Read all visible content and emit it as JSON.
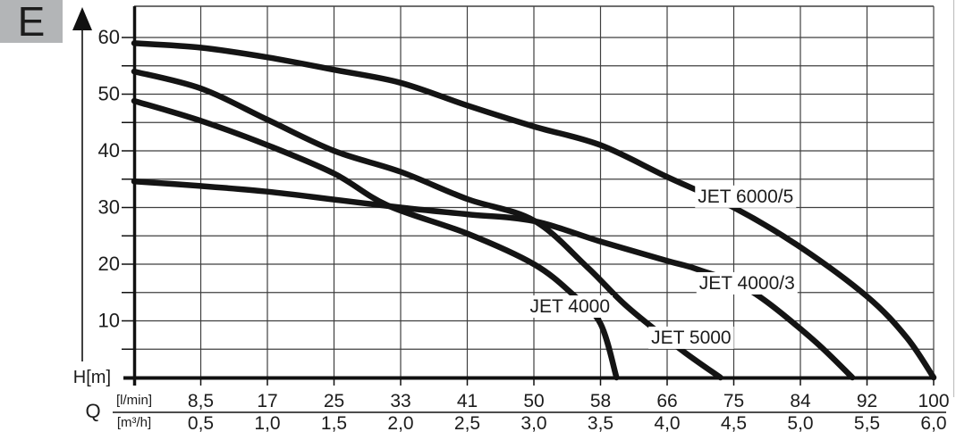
{
  "page": {
    "corner_label": "E"
  },
  "chart_data": {
    "type": "line",
    "grid": true,
    "legend_position": "inline-curve-labels",
    "x_axis": {
      "label": "Q",
      "unit_rows": [
        "[l/min]",
        "[m³/h]"
      ],
      "range_m3h": [
        0,
        6
      ],
      "tick_step_m3h": 0.5,
      "ticks": [
        {
          "lmin": "8,5",
          "m3h": "0,5",
          "q": 0.5
        },
        {
          "lmin": "17",
          "m3h": "1,0",
          "q": 1.0
        },
        {
          "lmin": "25",
          "m3h": "1,5",
          "q": 1.5
        },
        {
          "lmin": "33",
          "m3h": "2,0",
          "q": 2.0
        },
        {
          "lmin": "41",
          "m3h": "2,5",
          "q": 2.5
        },
        {
          "lmin": "50",
          "m3h": "3,0",
          "q": 3.0
        },
        {
          "lmin": "58",
          "m3h": "3,5",
          "q": 3.5
        },
        {
          "lmin": "66",
          "m3h": "4,0",
          "q": 4.0
        },
        {
          "lmin": "75",
          "m3h": "4,5",
          "q": 4.5
        },
        {
          "lmin": "84",
          "m3h": "5,0",
          "q": 5.0
        },
        {
          "lmin": "92",
          "m3h": "5,5",
          "q": 5.5
        },
        {
          "lmin": "100",
          "m3h": "6,0",
          "q": 6.0
        }
      ]
    },
    "y_axis": {
      "label": "H[m]",
      "range_m": [
        0,
        65
      ],
      "major_ticks": [
        10,
        20,
        30,
        40,
        50,
        60
      ],
      "minor_step_m": 5
    },
    "series": [
      {
        "name": "JET 4000/3",
        "points": [
          [
            0,
            34.6
          ],
          [
            0.5,
            33.8
          ],
          [
            1,
            32.8
          ],
          [
            1.5,
            31.4
          ],
          [
            2,
            30
          ],
          [
            2.5,
            28.8
          ],
          [
            3,
            27.6
          ],
          [
            3.5,
            24
          ],
          [
            4,
            20.6
          ],
          [
            4.24,
            19
          ],
          [
            4.62,
            15.4
          ],
          [
            5.07,
            7.2
          ],
          [
            5.39,
            0
          ]
        ],
        "label_q": 4.24,
        "label_h": 15.6
      },
      {
        "name": "JET 4000",
        "points": [
          [
            0,
            48.8
          ],
          [
            0.5,
            45.3
          ],
          [
            1,
            41
          ],
          [
            1.5,
            36
          ],
          [
            1.9,
            30.4
          ],
          [
            2.5,
            25.4
          ],
          [
            3,
            20
          ],
          [
            3.3,
            14.5
          ],
          [
            3.5,
            9.5
          ],
          [
            3.62,
            0
          ]
        ],
        "label_q": 2.97,
        "label_h": 11.5
      },
      {
        "name": "JET 5000",
        "points": [
          [
            0,
            54
          ],
          [
            0.5,
            51
          ],
          [
            1,
            45.5
          ],
          [
            1.5,
            40
          ],
          [
            2,
            36.3
          ],
          [
            2.5,
            31.5
          ],
          [
            3,
            27.7
          ],
          [
            3.4,
            19.5
          ],
          [
            3.7,
            12.5
          ],
          [
            4.1,
            5
          ],
          [
            4.4,
            0
          ]
        ],
        "label_q": 3.88,
        "label_h": 6.0
      },
      {
        "name": "JET 6000/5",
        "points": [
          [
            0,
            59
          ],
          [
            0.5,
            58.2
          ],
          [
            1,
            56.5
          ],
          [
            1.5,
            54.3
          ],
          [
            2,
            52
          ],
          [
            2.5,
            48
          ],
          [
            3,
            44.3
          ],
          [
            3.5,
            41
          ],
          [
            4,
            35.4
          ],
          [
            4.5,
            30
          ],
          [
            5,
            23
          ],
          [
            5.5,
            14.3
          ],
          [
            5.8,
            7
          ],
          [
            6,
            0
          ]
        ],
        "label_q": 4.23,
        "label_h": 30.9
      }
    ],
    "colors": {
      "curve": "#141414",
      "grid": "#3f3f3f",
      "axis": "#111111",
      "text": "#1c1c1c",
      "corner_box_bg": "#b3b5b7"
    }
  }
}
